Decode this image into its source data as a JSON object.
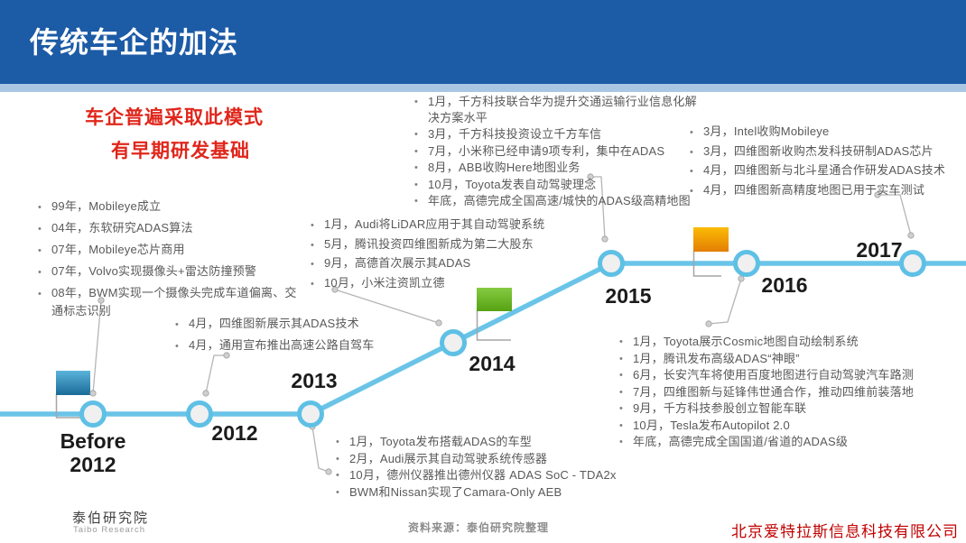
{
  "header": {
    "title": "传统车企的加法"
  },
  "callout": {
    "line1": "车企普遍采取此模式",
    "line2": "有早期研发基础"
  },
  "timeline": {
    "years": {
      "before_line1": "Before",
      "before_line2": "2012",
      "y2012": "2012",
      "y2013": "2013",
      "y2014": "2014",
      "y2015": "2015",
      "y2016": "2016",
      "y2017": "2017"
    },
    "events": {
      "before": [
        "99年，Mobileye成立",
        "04年，东软研究ADAS算法",
        "07年，Mobileye芯片商用",
        "07年，Volvo实现摄像头+雷达防撞预警",
        "08年，BWM实现一个摄像头完成车道偏离、交通标志识别"
      ],
      "y2012": [
        "4月，四维图新展示其ADAS技术",
        "4月，通用宣布推出高速公路自驾车"
      ],
      "y2013": [
        "1月，Toyota发布搭载ADAS的车型",
        "2月，Audi展示其自动驾驶系统传感器",
        "10月，德州仪器推出德州仪器 ADAS SoC - TDA2x",
        "BWM和Nissan实现了Camara-Only AEB"
      ],
      "y2014": [
        "1月，Audi将LiDAR应用于其自动驾驶系统",
        "5月，腾讯投资四维图新成为第二大股东",
        "9月，高德首次展示其ADAS",
        "10月，小米注资凯立德"
      ],
      "y2015": [
        "1月，千方科技联合华为提升交通运输行业信息化解决方案水平",
        "3月，千方科技投资设立千方车信",
        "7月，小米称已经申请9项专利，集中在ADAS",
        "8月，ABB收购Here地图业务",
        "10月，Toyota发表自动驾驶理念",
        "年底，高德完成全国高速/城快的ADAS级高精地图"
      ],
      "y2016": [
        "1月，Toyota展示Cosmic地图自动绘制系统",
        "1月，腾讯发布高级ADAS“神眼”",
        "6月，长安汽车将使用百度地图进行自动驾驶汽车路测",
        "7月，四维图新与延锋伟世通合作，推动四维前装落地",
        "9月，千方科技参股创立智能车联",
        "10月，Tesla发布Autopilot 2.0",
        "年底，高德完成全国国道/省道的ADAS级"
      ],
      "y2017": [
        "3月，Intel收购Mobileye",
        "3月，四维图新收购杰发科技研制ADAS芯片",
        "4月，四维图新与北斗星通合作研发ADAS技术",
        "4月，四维图新高精度地图已用于实车测试"
      ]
    },
    "flags": [
      "blue-flag",
      "green-flag",
      "orange-flag"
    ]
  },
  "colors": {
    "header_blue": "#1C5BA6",
    "header_strip": "#A9C7E3",
    "timeline_blue": "#6AC4E8",
    "node_ring": "#5FC0E5",
    "callout_red": "#E0261B",
    "company_red": "#C00000",
    "event_text_gray": "#595959",
    "flag_blue_top": "#5BB3DA",
    "flag_blue_bottom": "#1A6B98",
    "flag_green_top": "#86CB42",
    "flag_green_bottom": "#55A213",
    "flag_orange_top": "#FBBB05",
    "flag_orange_bottom": "#E37E03"
  },
  "footer": {
    "brand_cn": "泰伯研究院",
    "brand_en": "Taibo Research",
    "source": "资料来源：泰伯研究院整理",
    "company": "北京爱特拉斯信息科技有限公司"
  }
}
